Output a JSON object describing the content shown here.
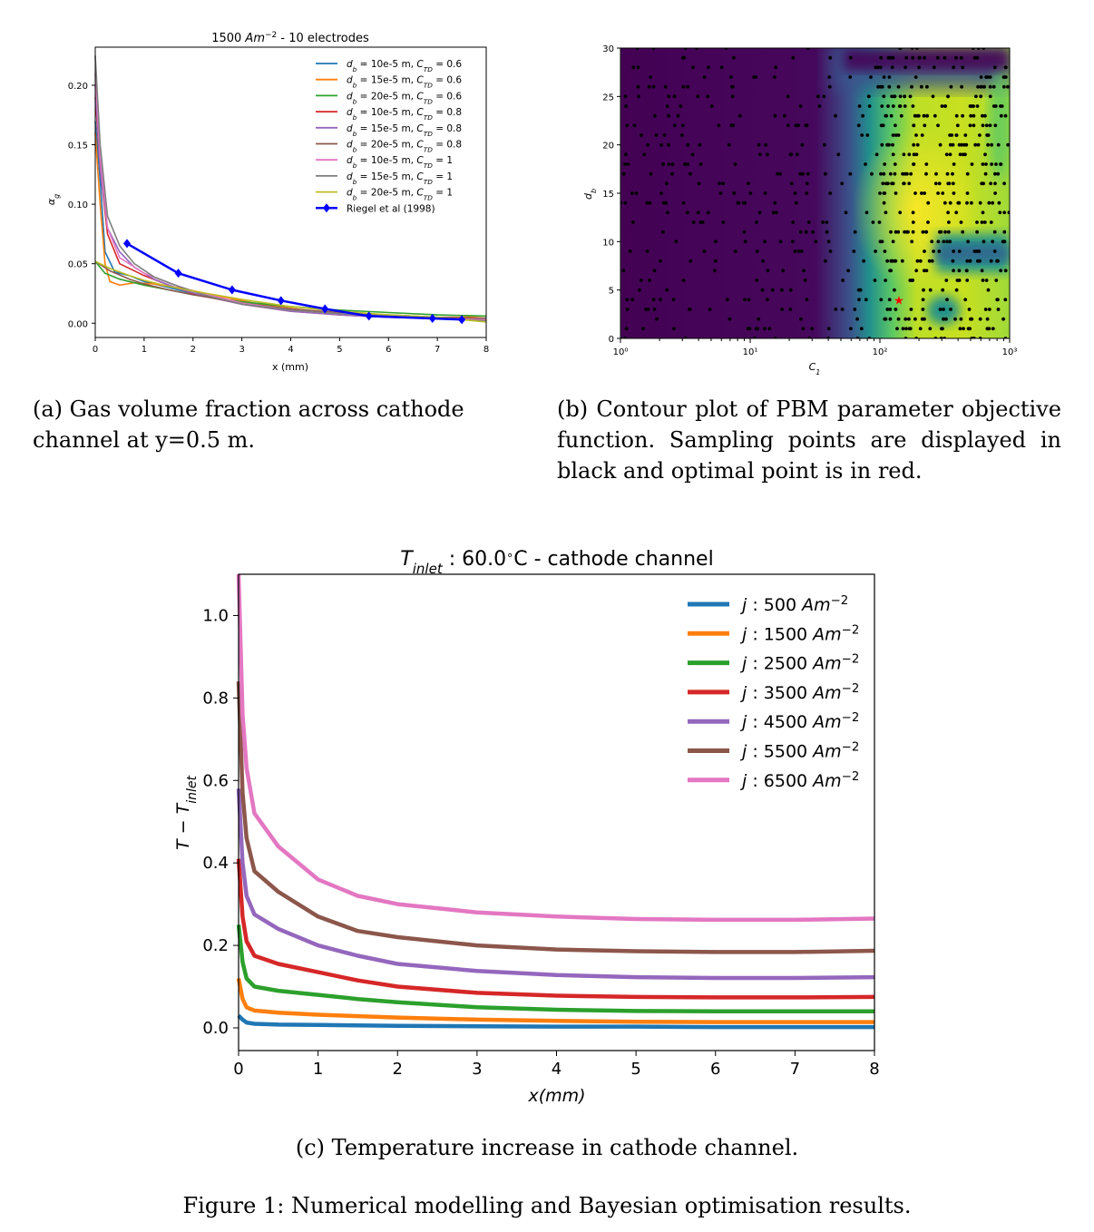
{
  "chart_data": [
    {
      "type": "line",
      "id": "a",
      "title": "1500 Am⁻² - 10 electrodes",
      "xlabel": "x (mm)",
      "ylabel": "αg",
      "xlim": [
        0,
        8
      ],
      "ylim": [
        -0.012,
        0.232
      ],
      "xticks": [
        "0",
        "1",
        "2",
        "3",
        "4",
        "5",
        "6",
        "7",
        "8"
      ],
      "yticks": [
        "0.00",
        "0.05",
        "0.10",
        "0.15",
        "0.20"
      ],
      "series": [
        {
          "name": "db = 10e-5 m, CTD = 0.6",
          "color": "#1f77b4",
          "x": [
            0,
            0.1,
            0.2,
            0.4,
            0.7,
            1,
            1.5,
            2,
            3,
            4,
            5,
            6,
            7,
            8
          ],
          "y": [
            0.17,
            0.12,
            0.06,
            0.043,
            0.04,
            0.035,
            0.03,
            0.025,
            0.017,
            0.011,
            0.008,
            0.006,
            0.005,
            0.004
          ]
        },
        {
          "name": "db = 15e-5 m, CTD = 0.6",
          "color": "#ff7f0e",
          "x": [
            0,
            0.1,
            0.2,
            0.3,
            0.5,
            0.8,
            1.2,
            1.8,
            2.5,
            3.5,
            4.5,
            5.5,
            6.5,
            7.5,
            8
          ],
          "y": [
            0.16,
            0.1,
            0.05,
            0.035,
            0.032,
            0.034,
            0.033,
            0.029,
            0.023,
            0.015,
            0.01,
            0.007,
            0.005,
            0.005,
            0.006
          ]
        },
        {
          "name": "db = 20e-5 m, CTD = 0.6",
          "color": "#2ca02c",
          "x": [
            0,
            0.2,
            0.5,
            1,
            1.5,
            2,
            3,
            4,
            5,
            6,
            7,
            8
          ],
          "y": [
            0.052,
            0.042,
            0.037,
            0.032,
            0.028,
            0.024,
            0.018,
            0.014,
            0.011,
            0.009,
            0.007,
            0.006
          ]
        },
        {
          "name": "db = 10e-5 m, CTD = 0.8",
          "color": "#d62728",
          "x": [
            0,
            0.1,
            0.25,
            0.5,
            1,
            1.5,
            2,
            3,
            4,
            5,
            6,
            7,
            8
          ],
          "y": [
            0.19,
            0.13,
            0.075,
            0.05,
            0.04,
            0.032,
            0.025,
            0.016,
            0.01,
            0.007,
            0.005,
            0.004,
            0.003
          ]
        },
        {
          "name": "db = 15e-5 m, CTD = 0.8",
          "color": "#9467bd",
          "x": [
            0,
            0.1,
            0.25,
            0.5,
            0.8,
            1.2,
            1.7,
            2.3,
            3,
            4,
            5,
            6,
            7,
            8
          ],
          "y": [
            0.2,
            0.13,
            0.08,
            0.06,
            0.047,
            0.037,
            0.029,
            0.022,
            0.016,
            0.01,
            0.007,
            0.005,
            0.004,
            0.003
          ]
        },
        {
          "name": "db = 20e-5 m, CTD = 0.8",
          "color": "#8c564b",
          "x": [
            0,
            0.3,
            0.7,
            1,
            1.5,
            2,
            3,
            4,
            5,
            6,
            7,
            8
          ],
          "y": [
            0.052,
            0.044,
            0.037,
            0.033,
            0.028,
            0.024,
            0.017,
            0.012,
            0.009,
            0.007,
            0.005,
            0.004
          ]
        },
        {
          "name": "db = 10e-5 m, CTD = 1",
          "color": "#e377c2",
          "x": [
            0,
            0.1,
            0.25,
            0.5,
            1,
            1.5,
            2,
            3,
            4,
            5,
            6,
            7,
            8
          ],
          "y": [
            0.21,
            0.14,
            0.08,
            0.055,
            0.042,
            0.034,
            0.027,
            0.017,
            0.011,
            0.008,
            0.006,
            0.004,
            0.003
          ]
        },
        {
          "name": "db = 15e-5 m, CTD = 1",
          "color": "#7f7f7f",
          "x": [
            0,
            0.1,
            0.25,
            0.5,
            0.8,
            1.2,
            1.7,
            2.3,
            3,
            4,
            5,
            6,
            7,
            8
          ],
          "y": [
            0.225,
            0.15,
            0.09,
            0.065,
            0.05,
            0.039,
            0.031,
            0.023,
            0.016,
            0.011,
            0.008,
            0.006,
            0.004,
            0.002
          ]
        },
        {
          "name": "db = 20e-5 m, CTD = 1",
          "color": "#bcbd22",
          "x": [
            0,
            0.3,
            0.7,
            1,
            1.5,
            2,
            3,
            4,
            5,
            6,
            7,
            7.5,
            8
          ],
          "y": [
            0.052,
            0.046,
            0.04,
            0.036,
            0.031,
            0.027,
            0.02,
            0.014,
            0.01,
            0.007,
            0.005,
            0.003,
            0.001
          ]
        },
        {
          "name": "Riegel et al (1998)",
          "color": "#0000ff",
          "marker": "diamond",
          "x": [
            0.65,
            1.7,
            2.8,
            3.8,
            4.7,
            5.6,
            6.9,
            7.5
          ],
          "y": [
            0.067,
            0.042,
            0.028,
            0.019,
            0.012,
            0.006,
            0.004,
            0.003
          ]
        }
      ]
    },
    {
      "type": "heatmap",
      "id": "b",
      "title": "",
      "xlabel": "C1",
      "ylabel": "db",
      "xscale": "log",
      "xlim": [
        1,
        1000
      ],
      "ylim": [
        0,
        30
      ],
      "xticks": [
        "10⁰",
        "10¹",
        "10²",
        "10³"
      ],
      "yticks": [
        "0",
        "5",
        "10",
        "15",
        "20",
        "25",
        "30"
      ],
      "optimal_point": {
        "C1": 140,
        "db": 4
      },
      "sample_count": 700
    },
    {
      "type": "line",
      "id": "c",
      "title": "Tinlet: 60.0 °C - cathode channel",
      "xlabel": "x(mm)",
      "ylabel": "T − Tinlet",
      "xlim": [
        0,
        8
      ],
      "ylim": [
        -0.055,
        1.1
      ],
      "xticks": [
        "0",
        "1",
        "2",
        "3",
        "4",
        "5",
        "6",
        "7",
        "8"
      ],
      "yticks": [
        "0.0",
        "0.2",
        "0.4",
        "0.6",
        "0.8",
        "1.0"
      ],
      "series": [
        {
          "name": "j : 500 Am⁻²",
          "color": "#1f77b4",
          "x": [
            0,
            0.05,
            0.1,
            0.2,
            0.5,
            1,
            2,
            3,
            4,
            5,
            6,
            7,
            8
          ],
          "y": [
            0.03,
            0.02,
            0.013,
            0.01,
            0.008,
            0.007,
            0.005,
            0.004,
            0.003,
            0.003,
            0.002,
            0.002,
            0.002
          ]
        },
        {
          "name": "j : 1500 Am⁻²",
          "color": "#ff7f0e",
          "x": [
            0,
            0.05,
            0.1,
            0.2,
            0.5,
            1,
            2,
            3,
            4,
            5,
            6,
            7,
            8
          ],
          "y": [
            0.12,
            0.07,
            0.05,
            0.042,
            0.037,
            0.032,
            0.025,
            0.02,
            0.017,
            0.015,
            0.014,
            0.014,
            0.014
          ]
        },
        {
          "name": "j : 2500 Am⁻²",
          "color": "#2ca02c",
          "x": [
            0,
            0.05,
            0.1,
            0.2,
            0.5,
            1,
            1.5,
            2,
            3,
            4,
            5,
            6,
            7,
            8
          ],
          "y": [
            0.25,
            0.16,
            0.12,
            0.1,
            0.09,
            0.08,
            0.07,
            0.062,
            0.05,
            0.044,
            0.041,
            0.04,
            0.04,
            0.04
          ]
        },
        {
          "name": "j : 3500 Am⁻²",
          "color": "#d62728",
          "x": [
            0,
            0.05,
            0.1,
            0.2,
            0.5,
            1,
            1.5,
            2,
            3,
            4,
            5,
            6,
            7,
            8
          ],
          "y": [
            0.41,
            0.27,
            0.21,
            0.175,
            0.155,
            0.135,
            0.115,
            0.1,
            0.085,
            0.078,
            0.075,
            0.074,
            0.074,
            0.075
          ]
        },
        {
          "name": "j : 4500 Am⁻²",
          "color": "#9467bd",
          "x": [
            0,
            0.05,
            0.1,
            0.2,
            0.5,
            1,
            1.5,
            2,
            3,
            4,
            5,
            6,
            7,
            8
          ],
          "y": [
            0.58,
            0.4,
            0.32,
            0.275,
            0.24,
            0.2,
            0.175,
            0.155,
            0.138,
            0.128,
            0.123,
            0.121,
            0.121,
            0.123
          ]
        },
        {
          "name": "j : 5500 Am⁻²",
          "color": "#8c564b",
          "x": [
            0,
            0.05,
            0.1,
            0.2,
            0.5,
            1,
            1.5,
            2,
            3,
            4,
            5,
            6,
            7,
            8
          ],
          "y": [
            0.84,
            0.57,
            0.46,
            0.38,
            0.33,
            0.27,
            0.235,
            0.22,
            0.2,
            0.19,
            0.186,
            0.184,
            0.184,
            0.187
          ]
        },
        {
          "name": "j : 6500 Am⁻²",
          "color": "#e377c2",
          "x": [
            0,
            0.05,
            0.1,
            0.2,
            0.5,
            1,
            1.5,
            2,
            3,
            4,
            5,
            6,
            7,
            8
          ],
          "y": [
            1.1,
            0.76,
            0.63,
            0.52,
            0.44,
            0.36,
            0.32,
            0.3,
            0.28,
            0.27,
            0.264,
            0.262,
            0.262,
            0.265
          ]
        }
      ]
    }
  ],
  "captions": {
    "a": "(a) Gas volume fraction across cathode channel at y=0.5 m.",
    "b": "(b) Contour plot of PBM parameter objective function. Sampling points are displayed in black and optimal point is in red.",
    "c": "(c) Temperature increase in cathode channel.",
    "figure": "Figure 1: Numerical modelling and Bayesian optimisation results."
  }
}
